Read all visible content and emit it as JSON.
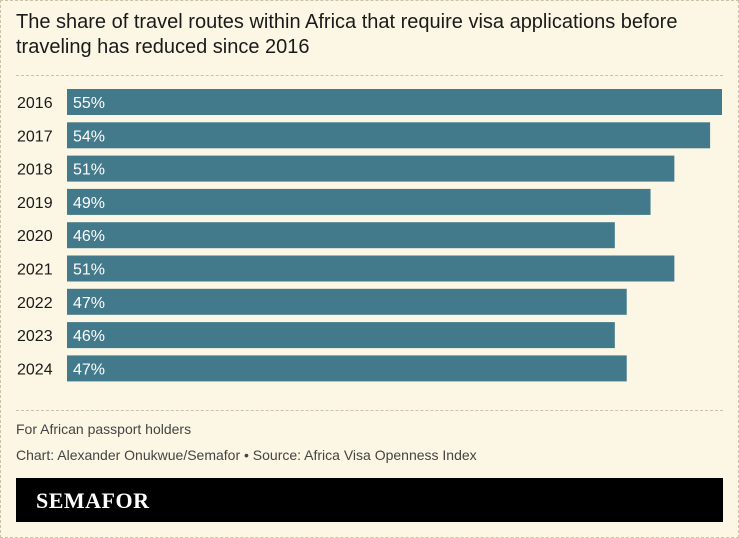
{
  "chart_data": {
    "type": "bar",
    "orientation": "horizontal",
    "title": "The share of travel routes within Africa that require visa applications before traveling has reduced since 2016",
    "categories": [
      "2016",
      "2017",
      "2018",
      "2019",
      "2020",
      "2021",
      "2022",
      "2023",
      "2024"
    ],
    "values": [
      55,
      54,
      51,
      49,
      46,
      51,
      47,
      46,
      47
    ],
    "value_suffix": "%",
    "bar_color": "#437a8b",
    "grid": false
  },
  "notes": {
    "subtitle": "For African passport holders",
    "credit": "Chart: Alexander Onukwue/Semafor • Source: Africa Visa Openness Index"
  },
  "footer": {
    "logo": "SEMAFOR"
  }
}
